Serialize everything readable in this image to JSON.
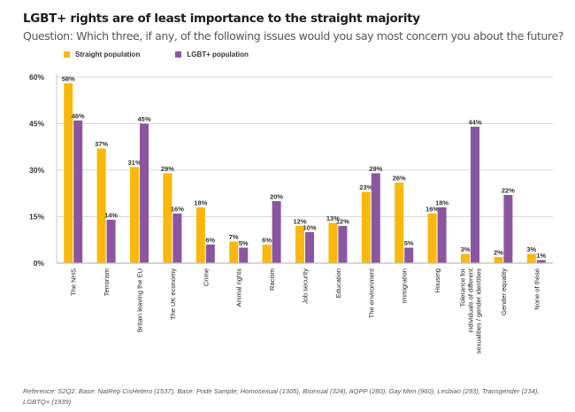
{
  "chart_data": {
    "type": "bar",
    "title": "LGBT+ rights are of least importance to the straight majority",
    "subtitle": "Question: Which three, if any, of the following issues would you say most concern you about the future?",
    "xlabel": "",
    "ylabel": "",
    "ylim": [
      0,
      60
    ],
    "yticks": [
      0,
      15,
      30,
      45,
      60
    ],
    "ytick_labels": [
      "0%",
      "15%",
      "30%",
      "45%",
      "60%"
    ],
    "grid": true,
    "legend_position": "top-left",
    "categories": [
      "The NHS",
      "Terrorism",
      "Britain leaving the EU",
      "The UK economy",
      "Crime",
      "Animal rights",
      "Racism",
      "Job security",
      "Education",
      "The environment",
      "Immigration",
      "Housing",
      "Tolerance for individuals of different sexualities / gender identities",
      "Gender equality",
      "None of these"
    ],
    "category_lines": [
      [
        "The NHS"
      ],
      [
        "Terrorism"
      ],
      [
        "Britain leaving the EU"
      ],
      [
        "The UK economy"
      ],
      [
        "Crime"
      ],
      [
        "Animal rights"
      ],
      [
        "Racism"
      ],
      [
        "Job security"
      ],
      [
        "Education"
      ],
      [
        "The environment"
      ],
      [
        "Immigration"
      ],
      [
        "Housing"
      ],
      [
        "Tolerance for",
        "individuals of different",
        "sexualities / gender identities"
      ],
      [
        "Gender equality"
      ],
      [
        "None of these"
      ]
    ],
    "series": [
      {
        "name": "Straight population",
        "color": "#F9B80B",
        "values": [
          58,
          37,
          31,
          29,
          18,
          7,
          6,
          12,
          13,
          23,
          26,
          16,
          3,
          2,
          3
        ]
      },
      {
        "name": "LGBT+ population",
        "color": "#8B56A0",
        "values": [
          46,
          14,
          45,
          16,
          6,
          5,
          20,
          10,
          12,
          29,
          5,
          18,
          44,
          22,
          1
        ]
      }
    ],
    "value_suffix": "%"
  },
  "reference": "Reference: S2Q2. Base: NatRep CisHetero (1537), Base: Pride Sample; Homosexual (1305), Bisexual (324), AQPP (280), Gay Men (960), Lesbian (293), Transgender (234), LGBTQ+ (1939)"
}
